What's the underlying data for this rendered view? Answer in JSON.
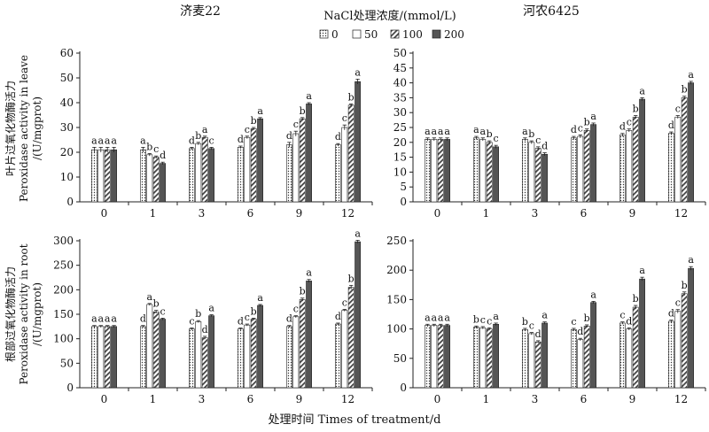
{
  "figure": {
    "xlabel": "处理时间 Times of treatment/d",
    "legend": {
      "title": "NaCl处理浓度/(mmol/L)",
      "items": [
        "0",
        "50",
        "100",
        "200"
      ],
      "placement": "top-center"
    },
    "row_ylabels": [
      [
        "叶片过氧化物酶活力",
        "Peroxidase activity in leave",
        "/(U/mgprot)"
      ],
      [
        "根部过氧化物酶活力",
        "Peroxidase activity in root",
        "/(U/mgprot)"
      ]
    ],
    "panel_titles": [
      "济麦22",
      "河农6425"
    ]
  },
  "chart_data": [
    {
      "type": "bar",
      "title": "济麦22",
      "categories": [
        "0",
        "1",
        "3",
        "6",
        "9",
        "12"
      ],
      "ylim": [
        0,
        60
      ],
      "yticks": [
        0,
        10,
        20,
        30,
        40,
        50,
        60
      ],
      "series": [
        {
          "name": "0",
          "values": [
            21,
            21,
            21.5,
            22,
            23,
            23
          ],
          "errors": [
            1,
            1,
            0.5,
            0.5,
            1,
            0.5
          ]
        },
        {
          "name": "50",
          "values": [
            21,
            19,
            23.5,
            26,
            27.5,
            30
          ],
          "errors": [
            1,
            0.5,
            0.5,
            0.5,
            1,
            1
          ]
        },
        {
          "name": "100",
          "values": [
            21,
            18,
            26,
            29.5,
            33.5,
            39
          ],
          "errors": [
            1,
            0.5,
            0.5,
            0.5,
            0.5,
            0.5
          ]
        },
        {
          "name": "200",
          "values": [
            21,
            15.5,
            21.5,
            33.5,
            39.5,
            48.5
          ],
          "errors": [
            1,
            0.5,
            0.5,
            0.5,
            0.5,
            1
          ]
        }
      ],
      "letters": [
        [
          "a",
          "a",
          "a",
          "a"
        ],
        [
          "a",
          "b",
          "c",
          "d"
        ],
        [
          "d",
          "b",
          "a",
          "c"
        ],
        [
          "d",
          "c",
          "b",
          "a"
        ],
        [
          "d",
          "c",
          "b",
          "a"
        ],
        [
          "d",
          "c",
          "b",
          "a"
        ]
      ]
    },
    {
      "type": "bar",
      "title": "河农6425",
      "categories": [
        "0",
        "1",
        "3",
        "6",
        "9",
        "12"
      ],
      "ylim": [
        0,
        50
      ],
      "yticks": [
        0,
        5,
        10,
        15,
        20,
        25,
        30,
        35,
        40,
        45,
        50
      ],
      "series": [
        {
          "name": "0",
          "values": [
            21,
            21.5,
            21,
            21.5,
            22.5,
            23
          ],
          "errors": [
            0.5,
            0.5,
            0.5,
            0.5,
            0.5,
            0.5
          ]
        },
        {
          "name": "50",
          "values": [
            21,
            21,
            20,
            22,
            24,
            28.5
          ],
          "errors": [
            0.5,
            0.5,
            0.5,
            0.5,
            0.5,
            0.5
          ]
        },
        {
          "name": "100",
          "values": [
            21,
            20,
            18,
            24,
            28.5,
            35
          ],
          "errors": [
            0.5,
            0.5,
            0.5,
            0.5,
            0.5,
            0.5
          ]
        },
        {
          "name": "200",
          "values": [
            21,
            18.5,
            16,
            26,
            34.5,
            40
          ],
          "errors": [
            0.5,
            0.5,
            0.5,
            0.5,
            0.5,
            0.5
          ]
        }
      ],
      "letters": [
        [
          "a",
          "a",
          "a",
          "a"
        ],
        [
          "a",
          "a",
          "b",
          "c"
        ],
        [
          "a",
          "b",
          "c",
          "d"
        ],
        [
          "d",
          "c",
          "b",
          "a"
        ],
        [
          "d",
          "c",
          "b",
          "a"
        ],
        [
          "d",
          "c",
          "b",
          "a"
        ]
      ]
    },
    {
      "type": "bar",
      "title": "",
      "categories": [
        "0",
        "1",
        "3",
        "6",
        "9",
        "12"
      ],
      "ylim": [
        0,
        300
      ],
      "yticks": [
        0,
        50,
        100,
        150,
        200,
        250,
        300
      ],
      "series": [
        {
          "name": "0",
          "values": [
            125,
            125,
            120,
            120,
            125,
            130
          ],
          "errors": [
            2,
            2,
            2,
            2,
            2,
            2
          ]
        },
        {
          "name": "50",
          "values": [
            125,
            170,
            135,
            128,
            145,
            158
          ],
          "errors": [
            2,
            2,
            2,
            2,
            2,
            2
          ]
        },
        {
          "name": "100",
          "values": [
            125,
            155,
            102,
            140,
            180,
            205
          ],
          "errors": [
            2,
            3,
            3,
            2,
            3,
            4
          ]
        },
        {
          "name": "200",
          "values": [
            125,
            140,
            147,
            168,
            218,
            298
          ],
          "errors": [
            2,
            2,
            2,
            2,
            3,
            3
          ]
        }
      ],
      "letters": [
        [
          "a",
          "a",
          "a",
          "a"
        ],
        [
          "d",
          "a",
          "b",
          "c"
        ],
        [
          "c",
          "b",
          "d",
          "a"
        ],
        [
          "d",
          "c",
          "b",
          "a"
        ],
        [
          "d",
          "c",
          "b",
          "a"
        ],
        [
          "d",
          "c",
          "b",
          "a"
        ]
      ]
    },
    {
      "type": "bar",
      "title": "",
      "categories": [
        "0",
        "1",
        "3",
        "6",
        "9",
        "12"
      ],
      "ylim": [
        0,
        250
      ],
      "yticks": [
        0,
        50,
        100,
        150,
        200,
        250
      ],
      "series": [
        {
          "name": "0",
          "values": [
            106,
            103,
            99,
            99,
            110,
            113
          ],
          "errors": [
            2,
            2,
            2,
            2,
            2,
            2
          ]
        },
        {
          "name": "50",
          "values": [
            106,
            102,
            92,
            82,
            100,
            130
          ],
          "errors": [
            2,
            2,
            2,
            2,
            2,
            3
          ]
        },
        {
          "name": "100",
          "values": [
            106,
            100,
            78,
            105,
            137,
            160
          ],
          "errors": [
            2,
            2,
            2,
            2,
            3,
            3
          ]
        },
        {
          "name": "200",
          "values": [
            106,
            108,
            110,
            145,
            185,
            203
          ],
          "errors": [
            2,
            2,
            2,
            2,
            3,
            3
          ]
        }
      ],
      "letters": [
        [
          "a",
          "a",
          "a",
          "a"
        ],
        [
          "b",
          "c",
          "c",
          "a"
        ],
        [
          "b",
          "c",
          "d",
          "a"
        ],
        [
          "c",
          "d",
          "b",
          "a"
        ],
        [
          "c",
          "d",
          "b",
          "a"
        ],
        [
          "d",
          "c",
          "b",
          "a"
        ]
      ]
    }
  ]
}
